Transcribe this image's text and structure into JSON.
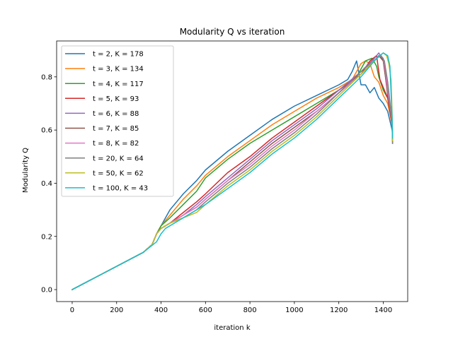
{
  "chart_data": {
    "type": "line",
    "title": "Modularity Q vs iteration",
    "xlabel": "iteration k",
    "ylabel": "Modularity Q",
    "xlim": [
      -70,
      1510
    ],
    "ylim": [
      -0.045,
      0.935
    ],
    "xticks": [
      0,
      200,
      400,
      600,
      800,
      1000,
      1200,
      1400
    ],
    "yticks": [
      0.0,
      0.2,
      0.4,
      0.6,
      0.8
    ],
    "xtick_labels": [
      "0",
      "200",
      "400",
      "600",
      "800",
      "1000",
      "1200",
      "1400"
    ],
    "ytick_labels": [
      "0.0",
      "0.2",
      "0.4",
      "0.6",
      "0.8"
    ],
    "grid": false,
    "legend_position": "top-left",
    "series": [
      {
        "name": "t = 2, K = 178",
        "color": "#1f77b4",
        "x": [
          0,
          320,
          360,
          380,
          400,
          440,
          500,
          560,
          600,
          700,
          800,
          900,
          1000,
          1100,
          1200,
          1240,
          1260,
          1280,
          1300,
          1320,
          1340,
          1360,
          1380,
          1400,
          1420,
          1440,
          1442
        ],
        "y": [
          0.0,
          0.14,
          0.17,
          0.21,
          0.24,
          0.3,
          0.36,
          0.41,
          0.45,
          0.52,
          0.58,
          0.64,
          0.69,
          0.73,
          0.77,
          0.79,
          0.82,
          0.86,
          0.77,
          0.77,
          0.74,
          0.76,
          0.72,
          0.7,
          0.67,
          0.6,
          0.57
        ]
      },
      {
        "name": "t = 3, K = 134",
        "color": "#ff7f0e",
        "x": [
          0,
          320,
          360,
          380,
          400,
          440,
          500,
          560,
          600,
          700,
          800,
          900,
          1000,
          1100,
          1200,
          1260,
          1300,
          1320,
          1340,
          1360,
          1380,
          1400,
          1420,
          1440,
          1442
        ],
        "y": [
          0.0,
          0.14,
          0.17,
          0.21,
          0.24,
          0.28,
          0.34,
          0.39,
          0.43,
          0.5,
          0.56,
          0.62,
          0.67,
          0.72,
          0.76,
          0.79,
          0.85,
          0.86,
          0.85,
          0.8,
          0.78,
          0.73,
          0.7,
          0.62,
          0.57
        ]
      },
      {
        "name": "t = 4, K = 117",
        "color": "#2ca02c",
        "x": [
          0,
          320,
          360,
          380,
          400,
          440,
          500,
          560,
          600,
          700,
          800,
          900,
          1000,
          1100,
          1200,
          1280,
          1320,
          1350,
          1370,
          1380,
          1400,
          1420,
          1440,
          1442
        ],
        "y": [
          0.0,
          0.14,
          0.17,
          0.21,
          0.24,
          0.27,
          0.32,
          0.37,
          0.42,
          0.49,
          0.55,
          0.6,
          0.65,
          0.7,
          0.75,
          0.8,
          0.86,
          0.87,
          0.84,
          0.8,
          0.75,
          0.72,
          0.63,
          0.57
        ]
      },
      {
        "name": "t = 5, K = 93",
        "color": "#d62728",
        "x": [
          0,
          320,
          360,
          380,
          400,
          440,
          500,
          560,
          600,
          700,
          800,
          900,
          1000,
          1100,
          1200,
          1300,
          1340,
          1370,
          1385,
          1400,
          1420,
          1440,
          1442
        ],
        "y": [
          0.0,
          0.14,
          0.17,
          0.21,
          0.23,
          0.25,
          0.29,
          0.33,
          0.36,
          0.44,
          0.5,
          0.57,
          0.63,
          0.69,
          0.75,
          0.81,
          0.86,
          0.88,
          0.79,
          0.76,
          0.72,
          0.62,
          0.56
        ]
      },
      {
        "name": "t = 6, K = 88",
        "color": "#9467bd",
        "x": [
          0,
          320,
          360,
          380,
          400,
          440,
          500,
          560,
          600,
          700,
          800,
          900,
          1000,
          1100,
          1200,
          1300,
          1360,
          1380,
          1400,
          1410,
          1420,
          1440,
          1442
        ],
        "y": [
          0.0,
          0.14,
          0.17,
          0.21,
          0.23,
          0.25,
          0.28,
          0.32,
          0.35,
          0.42,
          0.49,
          0.56,
          0.62,
          0.68,
          0.75,
          0.82,
          0.87,
          0.89,
          0.86,
          0.8,
          0.74,
          0.63,
          0.56
        ]
      },
      {
        "name": "t = 7, K = 85",
        "color": "#8c564b",
        "x": [
          0,
          320,
          360,
          380,
          400,
          440,
          500,
          560,
          600,
          700,
          800,
          900,
          1000,
          1100,
          1200,
          1300,
          1360,
          1380,
          1400,
          1410,
          1420,
          1440,
          1442
        ],
        "y": [
          0.0,
          0.14,
          0.17,
          0.21,
          0.23,
          0.25,
          0.28,
          0.31,
          0.34,
          0.41,
          0.48,
          0.55,
          0.61,
          0.67,
          0.74,
          0.81,
          0.86,
          0.88,
          0.86,
          0.8,
          0.73,
          0.62,
          0.55
        ]
      },
      {
        "name": "t = 8, K = 82",
        "color": "#e377c2",
        "x": [
          0,
          320,
          360,
          380,
          400,
          440,
          500,
          560,
          600,
          700,
          800,
          900,
          1000,
          1100,
          1200,
          1300,
          1360,
          1385,
          1400,
          1410,
          1420,
          1440,
          1442
        ],
        "y": [
          0.0,
          0.14,
          0.17,
          0.21,
          0.23,
          0.25,
          0.28,
          0.31,
          0.34,
          0.41,
          0.47,
          0.54,
          0.6,
          0.67,
          0.74,
          0.81,
          0.86,
          0.88,
          0.87,
          0.82,
          0.75,
          0.63,
          0.55
        ]
      },
      {
        "name": "t = 20, K = 64",
        "color": "#7f7f7f",
        "x": [
          0,
          320,
          360,
          380,
          400,
          440,
          500,
          560,
          600,
          700,
          800,
          900,
          1000,
          1100,
          1200,
          1300,
          1370,
          1390,
          1405,
          1420,
          1440,
          1442
        ],
        "y": [
          0.0,
          0.14,
          0.17,
          0.21,
          0.23,
          0.25,
          0.27,
          0.3,
          0.33,
          0.4,
          0.46,
          0.53,
          0.59,
          0.66,
          0.74,
          0.82,
          0.87,
          0.88,
          0.86,
          0.78,
          0.63,
          0.55
        ]
      },
      {
        "name": "t = 50, K = 62",
        "color": "#bcbd22",
        "x": [
          0,
          320,
          360,
          380,
          400,
          440,
          500,
          560,
          600,
          700,
          800,
          900,
          1000,
          1100,
          1200,
          1300,
          1370,
          1400,
          1415,
          1425,
          1435,
          1440,
          1442
        ],
        "y": [
          0.0,
          0.14,
          0.17,
          0.21,
          0.23,
          0.25,
          0.27,
          0.29,
          0.32,
          0.39,
          0.45,
          0.52,
          0.58,
          0.65,
          0.73,
          0.81,
          0.87,
          0.89,
          0.88,
          0.85,
          0.79,
          0.66,
          0.56
        ]
      },
      {
        "name": "t = 100, K = 43",
        "color": "#17becf",
        "x": [
          0,
          320,
          350,
          380,
          400,
          420,
          460,
          520,
          600,
          700,
          800,
          900,
          1000,
          1100,
          1200,
          1300,
          1370,
          1400,
          1420,
          1430,
          1440,
          1442
        ],
        "y": [
          0.0,
          0.14,
          0.16,
          0.18,
          0.21,
          0.23,
          0.25,
          0.28,
          0.32,
          0.38,
          0.44,
          0.51,
          0.57,
          0.64,
          0.72,
          0.8,
          0.87,
          0.89,
          0.88,
          0.84,
          0.64,
          0.57
        ]
      }
    ]
  }
}
